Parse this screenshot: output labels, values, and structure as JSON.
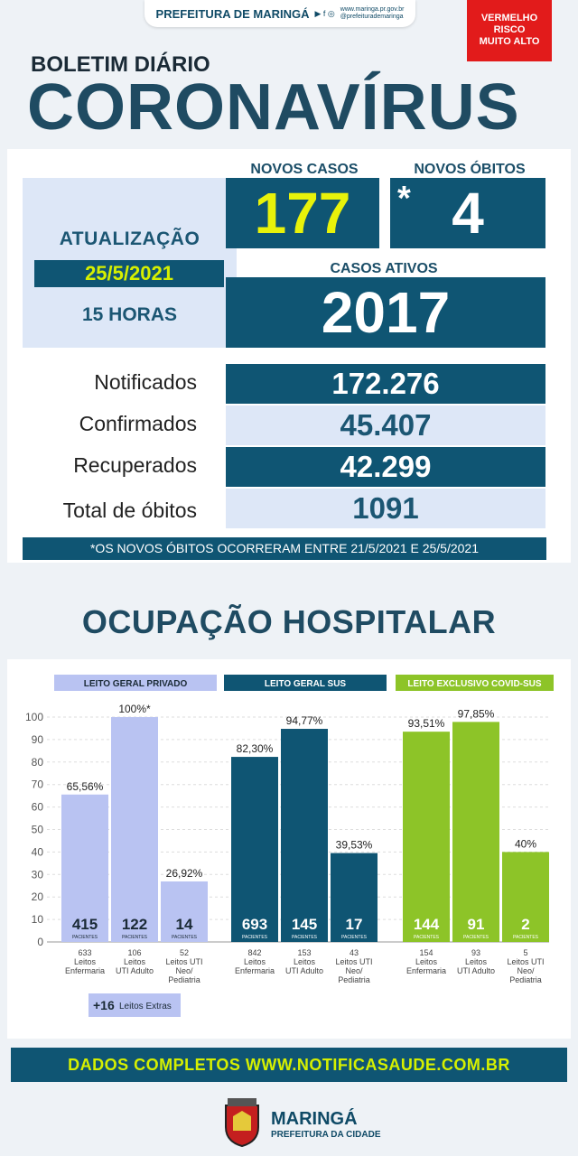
{
  "header": {
    "org": "PREFEITURA DE MARINGÁ",
    "site": "www.maringa.pr.gov.br",
    "handle": "@prefeiturademaringa",
    "risk": [
      "VERMELHO",
      "RISCO",
      "MUITO ALTO"
    ]
  },
  "title": {
    "line1": "BOLETIM DIÁRIO",
    "line2": "CORONAVÍRUS"
  },
  "update": {
    "label": "ATUALIZAÇÃO",
    "date": "25/5/2021",
    "time": "15 HORAS"
  },
  "new_cases": {
    "label": "NOVOS CASOS",
    "value": "177"
  },
  "new_deaths": {
    "label": "NOVOS ÓBITOS",
    "mark": "*",
    "value": "4"
  },
  "active": {
    "label": "CASOS ATIVOS",
    "value": "2017"
  },
  "stats": [
    {
      "label": "Notificados",
      "value": "172.276"
    },
    {
      "label": "Confirmados",
      "value": "45.407"
    },
    {
      "label": "Recuperados",
      "value": "42.299"
    },
    {
      "label": "Total de óbitos",
      "value": "1091"
    }
  ],
  "note": "*OS NOVOS ÓBITOS OCORRERAM ENTRE 21/5/2021 E 25/5/2021",
  "occupancy_title": "OCUPAÇÃO HOSPITALAR",
  "colors": {
    "navy": "#0f5573",
    "lavender": "#b9c3f2",
    "green": "#8dc428",
    "yellow": "#d6f000",
    "red": "#e21b1b"
  },
  "chart_data": {
    "type": "bar",
    "ylim": [
      0,
      100
    ],
    "yticks": [
      "0",
      "10",
      "20",
      "30",
      "40",
      "50",
      "60",
      "70",
      "80",
      "90",
      "100"
    ],
    "patients_label": "PACIENTES",
    "groups": [
      {
        "name": "LEITO GERAL PRIVADO",
        "color": "#b9c3f2",
        "header_color": "#b9c3f2",
        "bars": [
          {
            "value": 65.56,
            "label": "65,56%",
            "patients": "415",
            "beds": [
              "633",
              "Leitos",
              "Enfermaria"
            ]
          },
          {
            "value": 100,
            "label": "100%*",
            "patients": "122",
            "beds": [
              "106",
              "Leitos",
              "UTI Adulto"
            ]
          },
          {
            "value": 26.92,
            "label": "26,92%",
            "patients": "14",
            "beds": [
              "52",
              "Leitos UTI",
              "Neo/",
              "Pediatria"
            ]
          }
        ]
      },
      {
        "name": "LEITO GERAL SUS",
        "color": "#0f5573",
        "header_color": "#0f5573",
        "bars": [
          {
            "value": 82.3,
            "label": "82,30%",
            "patients": "693",
            "beds": [
              "842",
              "Leitos",
              "Enfermaria"
            ]
          },
          {
            "value": 94.77,
            "label": "94,77%",
            "patients": "145",
            "beds": [
              "153",
              "Leitos",
              "UTI Adulto"
            ]
          },
          {
            "value": 39.53,
            "label": "39,53%",
            "patients": "17",
            "beds": [
              "43",
              "Leitos UTI",
              "Neo/",
              "Pediatria"
            ]
          }
        ]
      },
      {
        "name": "LEITO EXCLUSIVO COVID-SUS",
        "color": "#8dc428",
        "header_color": "#8dc428",
        "bars": [
          {
            "value": 93.51,
            "label": "93,51%",
            "patients": "144",
            "beds": [
              "154",
              "Leitos",
              "Enfermaria"
            ]
          },
          {
            "value": 97.85,
            "label": "97,85%",
            "patients": "91",
            "beds": [
              "93",
              "Leitos",
              "UTI Adulto"
            ]
          },
          {
            "value": 40,
            "label": "40%",
            "patients": "2",
            "beds": [
              "5",
              "Leitos UTI",
              "Neo/",
              "Pediatria"
            ]
          }
        ]
      }
    ],
    "extra": {
      "number": "+16",
      "text": "Leitos Extras"
    }
  },
  "footer": "DADOS COMPLETOS  WWW.NOTIFICASAUDE.COM.BR",
  "logo": {
    "name": "MARINGÁ",
    "sub": "PREFEITURA DA CIDADE"
  }
}
